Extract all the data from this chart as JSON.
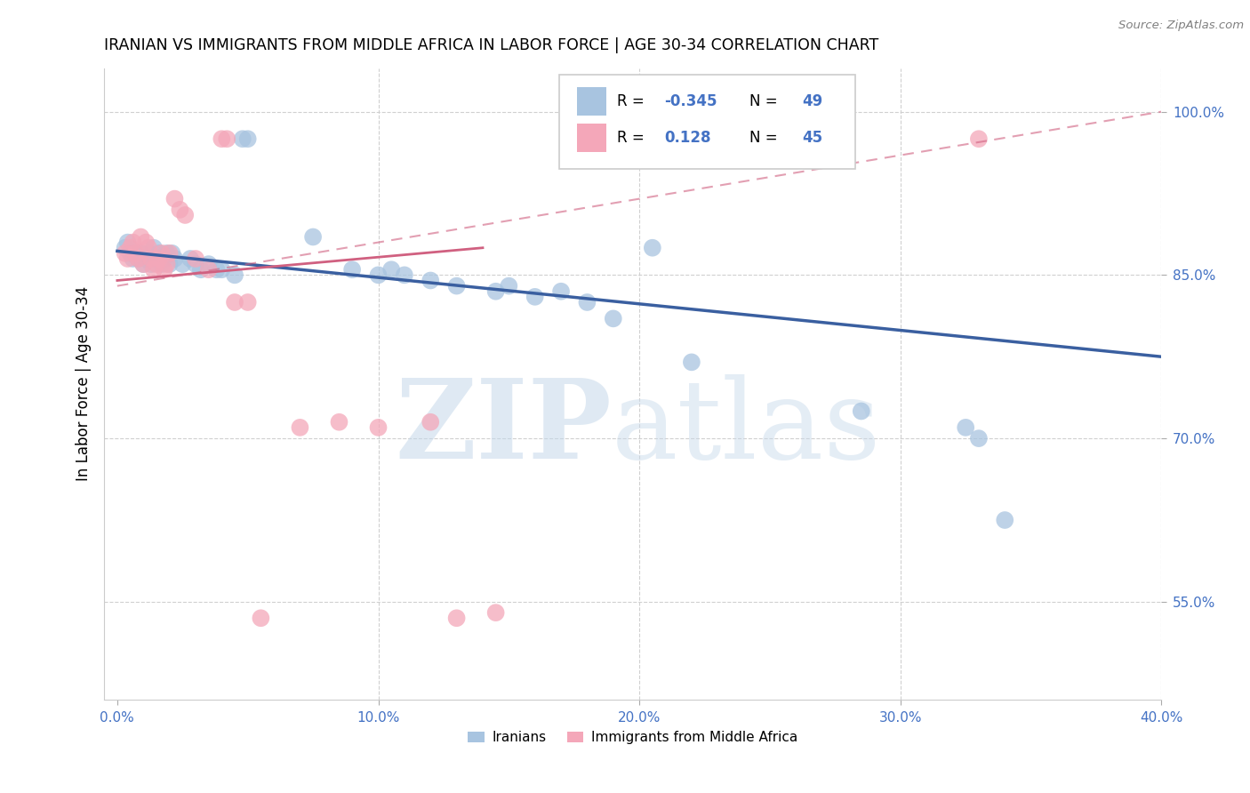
{
  "title": "IRANIAN VS IMMIGRANTS FROM MIDDLE AFRICA IN LABOR FORCE | AGE 30-34 CORRELATION CHART",
  "source": "Source: ZipAtlas.com",
  "xlabel_vals": [
    0.0,
    10.0,
    20.0,
    30.0,
    40.0
  ],
  "ylabel": "In Labor Force | Age 30-34",
  "ylabel_vals": [
    55.0,
    70.0,
    85.0,
    100.0
  ],
  "xlim": [
    -0.5,
    40.0
  ],
  "ylim": [
    46.0,
    104.0
  ],
  "blue_scatter": [
    [
      0.3,
      87.5
    ],
    [
      0.4,
      88.0
    ],
    [
      0.5,
      87.0
    ],
    [
      0.6,
      86.5
    ],
    [
      0.7,
      87.0
    ],
    [
      0.8,
      86.5
    ],
    [
      0.9,
      87.0
    ],
    [
      1.0,
      86.0
    ],
    [
      1.1,
      86.5
    ],
    [
      1.2,
      87.0
    ],
    [
      1.3,
      86.0
    ],
    [
      1.4,
      87.5
    ],
    [
      1.5,
      86.5
    ],
    [
      1.6,
      87.0
    ],
    [
      1.7,
      86.0
    ],
    [
      1.8,
      86.5
    ],
    [
      1.9,
      87.0
    ],
    [
      2.0,
      86.0
    ],
    [
      2.1,
      87.0
    ],
    [
      2.2,
      86.5
    ],
    [
      2.5,
      86.0
    ],
    [
      2.8,
      86.5
    ],
    [
      3.0,
      86.0
    ],
    [
      3.2,
      85.5
    ],
    [
      3.5,
      86.0
    ],
    [
      3.8,
      85.5
    ],
    [
      4.0,
      85.5
    ],
    [
      4.5,
      85.0
    ],
    [
      4.8,
      97.5
    ],
    [
      5.0,
      97.5
    ],
    [
      7.5,
      88.5
    ],
    [
      9.0,
      85.5
    ],
    [
      10.0,
      85.0
    ],
    [
      10.5,
      85.5
    ],
    [
      11.0,
      85.0
    ],
    [
      12.0,
      84.5
    ],
    [
      13.0,
      84.0
    ],
    [
      14.5,
      83.5
    ],
    [
      15.0,
      84.0
    ],
    [
      16.0,
      83.0
    ],
    [
      17.0,
      83.5
    ],
    [
      18.0,
      82.5
    ],
    [
      19.0,
      81.0
    ],
    [
      20.5,
      87.5
    ],
    [
      22.0,
      77.0
    ],
    [
      28.5,
      72.5
    ],
    [
      32.5,
      71.0
    ],
    [
      33.0,
      70.0
    ],
    [
      34.0,
      62.5
    ]
  ],
  "pink_scatter": [
    [
      0.3,
      87.0
    ],
    [
      0.4,
      86.5
    ],
    [
      0.5,
      87.5
    ],
    [
      0.6,
      88.0
    ],
    [
      0.7,
      87.0
    ],
    [
      0.8,
      86.5
    ],
    [
      0.9,
      88.5
    ],
    [
      1.0,
      86.0
    ],
    [
      1.1,
      88.0
    ],
    [
      1.2,
      87.5
    ],
    [
      1.3,
      86.5
    ],
    [
      1.4,
      85.5
    ],
    [
      1.5,
      86.0
    ],
    [
      1.6,
      86.5
    ],
    [
      1.7,
      87.0
    ],
    [
      1.8,
      85.5
    ],
    [
      1.9,
      86.0
    ],
    [
      2.0,
      87.0
    ],
    [
      2.2,
      92.0
    ],
    [
      2.4,
      91.0
    ],
    [
      2.6,
      90.5
    ],
    [
      3.0,
      86.5
    ],
    [
      3.5,
      85.5
    ],
    [
      4.0,
      97.5
    ],
    [
      4.2,
      97.5
    ],
    [
      4.5,
      82.5
    ],
    [
      5.0,
      82.5
    ],
    [
      5.5,
      53.5
    ],
    [
      7.0,
      71.0
    ],
    [
      8.5,
      71.5
    ],
    [
      10.0,
      71.0
    ],
    [
      12.0,
      71.5
    ],
    [
      13.0,
      53.5
    ],
    [
      14.5,
      54.0
    ],
    [
      33.0,
      97.5
    ]
  ],
  "blue_line_x": [
    0.0,
    40.0
  ],
  "blue_line_y": [
    87.2,
    77.5
  ],
  "pink_solid_line_x": [
    0.0,
    14.0
  ],
  "pink_solid_line_y": [
    84.5,
    87.5
  ],
  "pink_dash_line_x": [
    0.0,
    40.0
  ],
  "pink_dash_line_y": [
    84.0,
    100.0
  ],
  "watermark_part1": "ZIP",
  "watermark_part2": "atlas",
  "background_color": "#ffffff",
  "grid_color": "#d0d0d0",
  "blue_color": "#a8c4e0",
  "pink_color": "#f4a7b9",
  "blue_line_color": "#3a5fa0",
  "pink_line_color": "#d06080",
  "axis_tick_color": "#4472c4",
  "legend_R_color": "#4472c4",
  "legend_box_bg": "#ffffff",
  "legend_box_edge": "#cccccc"
}
